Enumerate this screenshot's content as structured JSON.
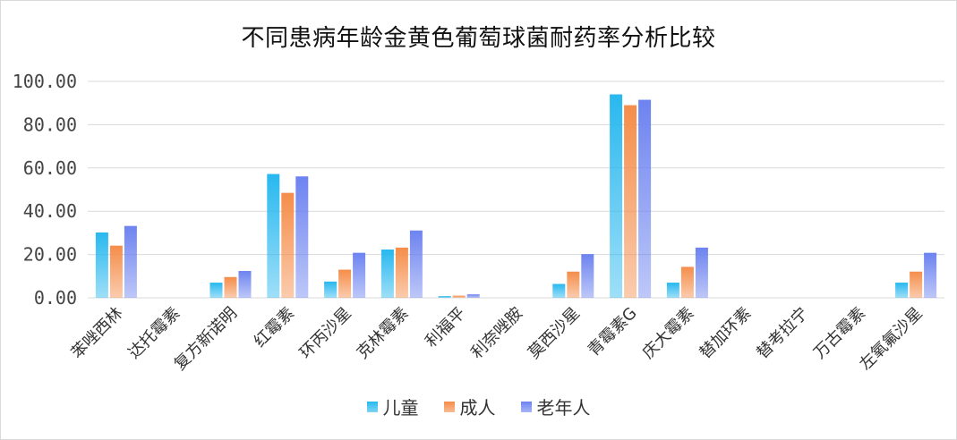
{
  "chart_data": {
    "type": "bar",
    "title": "不同患病年龄金黄色葡萄球菌耐药率分析比较",
    "categories": [
      "苯唑西林",
      "达托霉素",
      "复方新诺明",
      "红霉素",
      "环丙沙星",
      "克林霉素",
      "利福平",
      "利奈唑胺",
      "莫西沙星",
      "青霉素G",
      "庆大霉素",
      "替加环素",
      "替考拉宁",
      "万古霉素",
      "左氧氟沙星"
    ],
    "series": [
      {
        "name": "儿童",
        "color": "#28b8ef",
        "values": [
          30.2,
          0,
          7.0,
          57.2,
          7.5,
          22.3,
          0.8,
          0,
          6.4,
          94.0,
          7.0,
          0,
          0,
          0,
          7.0
        ]
      },
      {
        "name": "成人",
        "color": "#f58d4a",
        "values": [
          24.1,
          0,
          9.6,
          48.5,
          13.0,
          23.2,
          1.0,
          0,
          12.1,
          89.0,
          14.3,
          0,
          0,
          0,
          12.1
        ]
      },
      {
        "name": "老年人",
        "color": "#6d83f0",
        "values": [
          33.2,
          0,
          12.4,
          56.1,
          20.8,
          31.1,
          1.6,
          0,
          20.2,
          91.5,
          23.2,
          0,
          0,
          0,
          20.8
        ]
      }
    ],
    "ylim": [
      0,
      100
    ],
    "yticks": [
      "0.00",
      "20.00",
      "40.00",
      "60.00",
      "80.00",
      "100.00"
    ],
    "grid": true,
    "legend_position": "bottom"
  }
}
